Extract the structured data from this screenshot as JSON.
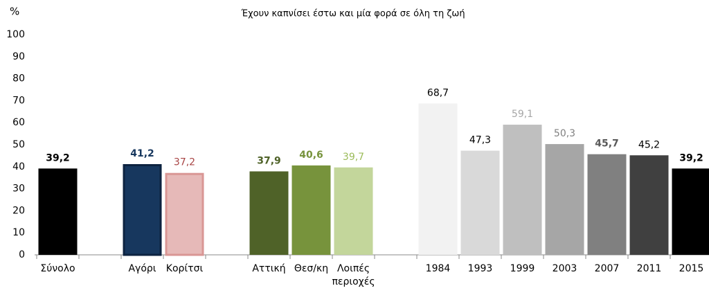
{
  "chart_data": {
    "type": "bar",
    "title": "Έχουν καπνίσει έστω και μία φορά σε όλη τη ζωή",
    "ylabel": "%",
    "categories": [
      "Σύνολο",
      null,
      "Αγόρι",
      "Κορίτσι",
      null,
      "Αττική",
      "Θεσ/κη",
      "Λοιπές περιοχές",
      null,
      "1984",
      "1993",
      "1999",
      "2003",
      "2007",
      "2011",
      "2015"
    ],
    "values": [
      39.2,
      null,
      41.2,
      37.2,
      null,
      37.9,
      40.6,
      39.7,
      null,
      68.7,
      47.3,
      59.1,
      50.3,
      45.7,
      45.2,
      39.2
    ],
    "value_labels": [
      "39,2",
      null,
      "41,2",
      "37,2",
      null,
      "37,9",
      "40,6",
      "39,7",
      null,
      "68,7",
      "47,3",
      "59,1",
      "50,3",
      "45,7",
      "45,2",
      "39,2"
    ],
    "colors": [
      "#000000",
      null,
      "#17375e",
      "#e6b9b8",
      null,
      "#4f6228",
      "#77933c",
      "#c3d69b",
      null,
      "#f2f2f2",
      "#d9d9d9",
      "#bfbfbf",
      "#a6a6a6",
      "#808080",
      "#404040",
      "#000000"
    ],
    "edge_colors": [
      null,
      null,
      "#0d2340",
      "#d99694",
      null,
      null,
      null,
      null,
      null,
      null,
      null,
      null,
      null,
      null,
      null,
      null
    ],
    "value_label_colors": [
      "#000000",
      null,
      "#17375e",
      "#a84444",
      null,
      "#4f6228",
      "#77933c",
      "#9bbb59",
      null,
      "#000000",
      "#000000",
      "#a6a6a6",
      "#808080",
      "#595959",
      "#000000",
      "#000000"
    ],
    "value_label_bold": [
      true,
      null,
      true,
      false,
      null,
      true,
      true,
      false,
      null,
      false,
      false,
      false,
      false,
      true,
      false,
      true
    ],
    "ylim": [
      0,
      100
    ],
    "yticks": [
      0,
      10,
      20,
      30,
      40,
      50,
      60,
      70,
      80,
      90,
      100
    ]
  }
}
